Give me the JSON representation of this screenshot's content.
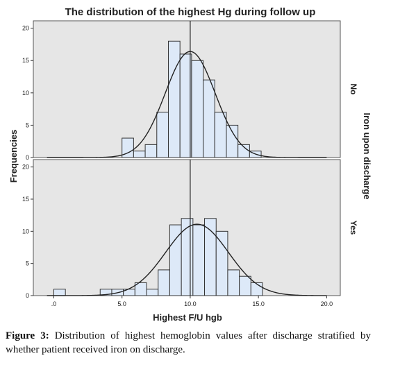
{
  "chart_data": {
    "type": "histogram",
    "title": "The distribution of the highest Hg during follow up",
    "xlabel": "Highest F/U hgb",
    "ylabel": "Frequencies",
    "panel_axis_label": "Iron upon discharge",
    "xlim": [
      -1.5,
      21
    ],
    "ylim": [
      0,
      20.5
    ],
    "x_ticks": [
      0,
      5,
      10,
      15,
      20
    ],
    "x_tick_labels": [
      ".0",
      "5.0",
      "10.0",
      "15.0",
      "20.0"
    ],
    "y_ticks": [
      0,
      5,
      10,
      15,
      20
    ],
    "y_tick_labels": [
      "0",
      "5",
      "10",
      "15",
      "20"
    ],
    "bin_width": 0.85,
    "grid": false,
    "reference_line_x": 10,
    "panels": [
      {
        "name": "No",
        "bin_starts": [
          5.0,
          5.85,
          6.7,
          7.55,
          8.4,
          9.25,
          10.1,
          10.95,
          11.8,
          12.65,
          13.5,
          14.35
        ],
        "counts": [
          3,
          1,
          2,
          7,
          18,
          16,
          15,
          12,
          7,
          5,
          2,
          1
        ],
        "normal_curve": {
          "mean": 10.0,
          "sd": 1.83,
          "peak": 16.4
        }
      },
      {
        "name": "Yes",
        "bin_starts": [
          0.0,
          3.4,
          4.25,
          5.1,
          5.95,
          6.8,
          7.65,
          8.5,
          9.35,
          10.2,
          11.05,
          11.9,
          12.75,
          13.6,
          14.45
        ],
        "counts": [
          1,
          1,
          1,
          1,
          2,
          1,
          4,
          11,
          12,
          11,
          12,
          10,
          4,
          3,
          2
        ],
        "normal_curve": {
          "mean": 10.5,
          "sd": 2.3,
          "peak": 11.1
        }
      }
    ]
  },
  "caption": {
    "label": "Figure 3:",
    "text": "Distribution of highest hemoglobin values after discharge stratified by whether patient received iron on discharge."
  },
  "colors": {
    "panel_background": "#e6e6e6",
    "bar_fill": "#dde9f8",
    "bar_stroke": "#333333",
    "curve": "#222222"
  }
}
